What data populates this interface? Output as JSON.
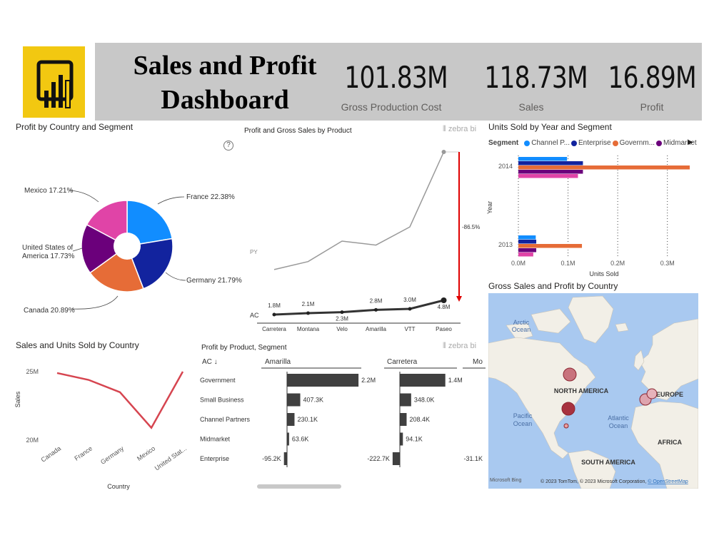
{
  "header": {
    "title_line1": "Sales and Profit",
    "title_line2": "Dashboard",
    "kpis": [
      {
        "value": "101.83M",
        "label": "Gross Production Cost"
      },
      {
        "value": "118.73M",
        "label": "Sales"
      },
      {
        "value": "16.89M",
        "label": "Profit"
      }
    ],
    "logo_icon": "power-bi-icon",
    "brand_color": "#f2c811"
  },
  "pie": {
    "title": "Profit by Country and Segment",
    "slices": [
      {
        "label": "France 22.38%",
        "value": 22.38,
        "color": "#118dff"
      },
      {
        "label": "Germany 21.79%",
        "value": 21.79,
        "color": "#12239e"
      },
      {
        "label": "Canada 20.89%",
        "value": 20.89,
        "color": "#e66c37"
      },
      {
        "label": "United States of",
        "label2": "America 17.73%",
        "value": 17.73,
        "color": "#6b007b"
      },
      {
        "label": "Mexico 17.21%",
        "value": 17.21,
        "color": "#e044a7"
      }
    ]
  },
  "product_chart": {
    "title": "Profit and Gross Sales by Product",
    "brand": "zebra bi",
    "help": "?",
    "py_label": "PY",
    "ac_label": "AC",
    "variance": "-86.5%",
    "products": [
      "Carretera",
      "Montana",
      "Velo",
      "Amarilla",
      "VTT",
      "Paseo"
    ],
    "ac_labels": [
      "1.8M",
      "2.1M",
      "2.3M",
      "2.8M",
      "3.0M",
      "4.8M"
    ],
    "ac_values": [
      1.8,
      2.1,
      2.3,
      2.8,
      3.0,
      4.8
    ],
    "py_values": [
      14.9,
      16.3,
      19.9,
      19.2,
      22.4,
      35.6
    ]
  },
  "units_chart": {
    "title": "Units Sold by Year and Segment",
    "legend_title": "Segment",
    "legend": [
      {
        "name": "Channel P...",
        "color": "#118dff"
      },
      {
        "name": "Enterprise",
        "color": "#12239e"
      },
      {
        "name": "Governm...",
        "color": "#e66c37"
      },
      {
        "name": "Midmarket",
        "color": "#6b007b"
      }
    ],
    "extra_color": "#e044a7",
    "years": [
      "2014",
      "2013"
    ],
    "ylabel": "Year",
    "xlabel": "Units Sold",
    "xticks": [
      "0.0M",
      "0.1M",
      "0.2M",
      "0.3M"
    ],
    "xlim": [
      0,
      0.345
    ],
    "values": {
      "2014": [
        0.098,
        0.13,
        0.345,
        0.13,
        0.12
      ],
      "2013": [
        0.035,
        0.036,
        0.128,
        0.036,
        0.03
      ]
    }
  },
  "line_chart": {
    "title": "Sales and Units Sold by Country",
    "ylabel": "Sales",
    "xlabel": "Country",
    "yticks": [
      "25M",
      "20M"
    ],
    "ylim": [
      20,
      25
    ],
    "categories": [
      "Canada",
      "France",
      "Germany",
      "Mexico",
      "United Stat..."
    ],
    "values": [
      24.9,
      24.4,
      23.5,
      20.9,
      25.0
    ],
    "color": "#d64550"
  },
  "table_chart": {
    "title": "Profit by Product, Segment",
    "brand": "zebra bi",
    "sort_label": "AC ↓",
    "columns": [
      "Amarilla",
      "Carretera",
      "Mo"
    ],
    "rows": [
      "Government",
      "Small Business",
      "Channel Partners",
      "Midmarket",
      "Enterprise"
    ],
    "amarilla_labels": [
      "2.2M",
      "407.3K",
      "230.1K",
      "63.6K",
      "-95.2K"
    ],
    "amarilla_values": [
      2200,
      407.3,
      230.1,
      63.6,
      -95.2
    ],
    "carretera_labels": [
      "1.4M",
      "348.0K",
      "208.4K",
      "94.1K",
      "-222.7K"
    ],
    "carretera_values": [
      1400,
      348.0,
      208.4,
      94.1,
      -222.7
    ],
    "mo_labels": [
      "-31.1K"
    ]
  },
  "map": {
    "title": "Gross Sales and Profit by Country",
    "labels": {
      "arctic": "Arctic",
      "arctic2": "Ocean",
      "na": "NORTH AMERICA",
      "europe": "EUROPE",
      "pacific": "Pacific",
      "pacific2": "Ocean",
      "atlantic": "Atlantic",
      "atlantic2": "Ocean",
      "africa": "AFRICA",
      "sa": "SOUTH AMERICA"
    },
    "bing": "Microsoft Bing",
    "copyright": "© 2023 TomTom, © 2023 Microsoft Corporation, ",
    "osm": "© OpenStreetMap"
  }
}
